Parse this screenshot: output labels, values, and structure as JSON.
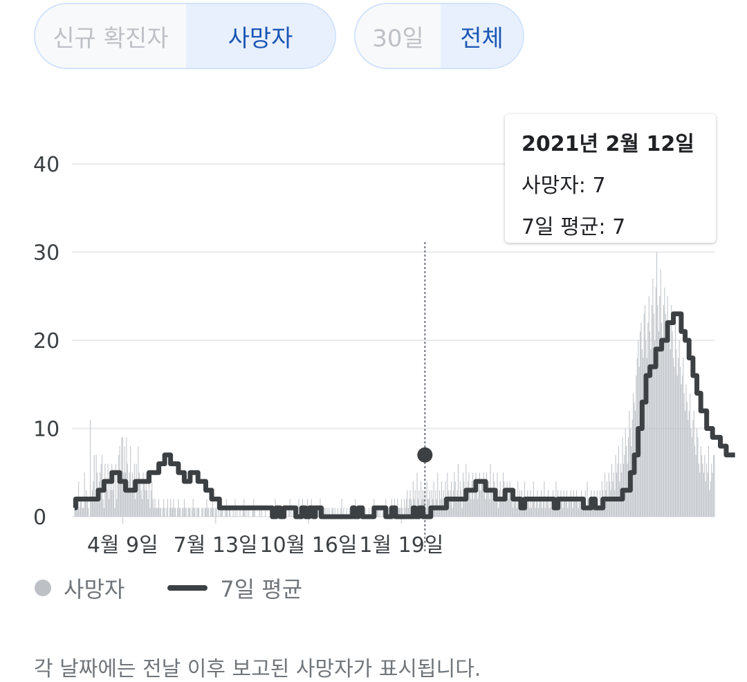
{
  "toggles": {
    "metric": [
      "신규 확진자",
      "사망자"
    ],
    "metric_active": 1,
    "range": [
      "30일",
      "전체"
    ],
    "range_active": 1
  },
  "tooltip": {
    "date": "2021년 2월 12일",
    "deaths": "사망자: 7",
    "avg": "7일 평균: 7"
  },
  "legend": {
    "bars": "사망자",
    "line": "7일 평균"
  },
  "footnote": "각 날짜에는 전날 이후 보고된 사망자가 표시됩니다.",
  "colors": {
    "bar": "#bdc1c6",
    "line": "#3c4043",
    "grid": "#e8eaed",
    "active_toggle_bg": "#e8f0fe",
    "active_toggle_text": "#1a56b4"
  },
  "chart_data": {
    "type": "bar",
    "x_range": [
      "2020-02-20",
      "2021-02-12"
    ],
    "ylim": [
      0,
      40
    ],
    "yticks": [
      0,
      10,
      20,
      30,
      40
    ],
    "ytick_labels": [
      "0",
      "10",
      "20",
      "30",
      "40"
    ],
    "xticks": [
      {
        "date": "2020-04-09",
        "label": "4월 9일"
      },
      {
        "date": "2020-07-13",
        "label": "7월 13일"
      },
      {
        "date": "2020-10-16",
        "label": "10월 16일"
      },
      {
        "date": "2021-01-19",
        "label": "1월 19일"
      }
    ],
    "grid": true,
    "legend_position": "bottom-left",
    "highlight": {
      "date": "2021-02-12",
      "deaths": 7,
      "avg": 7
    },
    "series": [
      {
        "name": "사망자",
        "kind": "bar",
        "values": [
          1,
          1,
          2,
          2,
          4,
          1,
          2,
          2,
          1,
          1,
          5,
          2,
          3,
          2,
          1,
          0,
          11,
          2,
          3,
          4,
          7,
          2,
          7,
          5,
          3,
          4,
          5,
          6,
          7,
          2,
          1,
          6,
          4,
          3,
          6,
          2,
          5,
          3,
          6,
          3,
          4,
          1,
          6,
          2,
          5,
          7,
          8,
          4,
          9,
          9,
          5,
          8,
          5,
          9,
          6,
          4,
          5,
          8,
          3,
          5,
          4,
          6,
          2,
          6,
          4,
          8,
          5,
          4,
          3,
          2,
          5,
          4,
          3,
          5,
          3,
          2,
          4,
          1,
          3,
          4,
          2,
          1,
          2,
          1,
          1,
          1,
          2,
          1,
          1,
          0,
          1,
          2,
          1,
          0,
          1,
          2,
          0,
          1,
          2,
          1,
          1,
          2,
          1,
          1,
          0,
          1,
          2,
          1,
          1,
          0,
          1,
          1,
          2,
          1,
          1,
          0,
          1,
          1,
          1,
          0,
          1,
          2,
          1,
          1,
          0,
          1,
          1,
          1,
          0,
          0,
          1,
          1,
          0,
          1,
          1,
          2,
          1,
          1,
          0,
          1,
          1,
          2,
          1,
          0,
          1,
          1,
          0,
          1,
          0,
          2,
          1,
          1,
          0,
          0,
          1,
          2,
          1,
          0,
          1,
          1,
          0,
          0,
          1,
          0,
          2,
          0,
          1,
          0,
          0,
          1,
          0,
          0,
          1,
          2,
          1,
          0,
          1,
          0,
          1,
          0,
          0,
          0,
          1,
          2,
          1,
          0,
          0,
          0,
          0,
          1,
          0,
          1,
          0,
          0,
          0,
          1,
          0,
          0,
          0,
          0,
          1,
          0,
          0,
          0,
          1,
          2,
          0,
          1,
          0,
          0,
          0,
          0,
          1,
          0,
          0,
          1,
          1,
          0,
          0,
          1,
          2,
          0,
          1,
          0,
          1,
          0,
          0,
          1,
          1,
          2,
          1,
          0,
          1,
          2,
          1,
          0,
          1,
          1,
          2,
          1,
          0,
          1,
          2,
          1,
          0,
          1,
          1,
          1,
          0,
          1,
          0,
          2,
          1,
          0,
          1,
          1,
          1,
          0,
          1,
          0,
          1,
          0,
          0,
          1,
          1,
          0,
          1,
          0,
          0,
          1,
          0,
          0,
          1,
          2,
          0,
          1,
          0,
          0,
          1,
          0,
          0,
          1,
          0,
          1,
          0,
          0,
          0,
          2,
          0,
          1,
          0,
          1,
          0,
          0,
          0,
          1,
          0,
          1,
          0,
          0,
          0,
          1,
          0,
          0,
          1,
          0,
          2,
          0,
          0,
          1,
          1,
          0,
          1,
          0,
          0,
          1,
          1,
          0,
          2,
          1,
          0,
          1,
          1,
          0,
          2,
          1,
          1,
          2,
          1,
          0,
          2,
          1,
          1,
          1,
          2,
          1,
          0,
          2,
          1,
          2,
          3,
          1,
          2,
          3,
          2,
          1,
          4,
          2,
          3,
          1,
          5,
          2,
          3,
          1,
          4,
          2,
          3,
          2,
          3,
          1,
          4,
          2,
          2,
          3,
          1,
          3,
          2,
          4,
          1,
          3,
          2,
          5,
          1,
          3,
          2,
          4,
          2,
          3,
          1,
          4,
          2,
          5,
          3,
          2,
          3,
          4,
          1,
          3,
          5,
          4,
          2,
          3,
          6,
          2,
          4,
          3,
          1,
          5,
          4,
          3,
          6,
          2,
          4,
          5,
          3,
          2,
          4,
          5,
          2,
          3,
          5,
          4,
          2,
          3,
          5,
          3,
          4,
          4,
          5,
          3,
          2,
          5,
          4,
          4,
          2,
          6,
          3,
          2,
          5,
          4,
          3,
          2,
          5,
          1,
          3,
          4,
          2,
          3,
          5,
          4,
          2,
          3,
          4,
          2,
          3,
          4,
          2,
          3,
          1,
          2,
          3,
          2,
          1,
          4,
          2,
          3,
          2,
          3,
          1,
          2,
          4,
          2,
          1,
          3,
          2,
          1,
          3,
          1,
          2,
          4,
          2,
          1,
          2,
          3,
          1,
          2,
          2,
          3,
          1,
          2,
          4,
          1,
          2,
          2,
          3,
          1,
          2,
          1,
          2,
          3,
          2,
          1,
          4,
          2,
          3,
          1,
          2,
          3,
          2,
          1,
          3,
          2,
          2,
          3,
          1,
          2,
          2,
          3,
          2,
          1,
          3,
          2,
          2,
          3,
          2,
          1,
          2,
          2,
          3,
          1,
          2,
          2,
          3,
          1,
          4,
          2,
          2,
          1,
          3,
          2,
          2,
          3,
          1,
          2,
          3,
          2,
          1,
          3,
          2,
          4,
          3,
          2,
          5,
          3,
          4,
          2,
          5,
          4,
          3,
          6,
          4,
          5,
          3,
          7,
          5,
          6,
          8,
          4,
          6,
          5,
          9,
          6,
          7,
          10,
          8,
          6,
          9,
          12,
          10,
          8,
          11,
          14,
          13,
          12,
          16,
          18,
          20,
          17,
          21,
          22,
          19,
          18,
          23,
          24,
          20,
          18,
          22,
          25,
          21,
          19,
          24,
          27,
          23,
          20,
          26,
          30,
          24,
          21,
          25,
          28,
          22,
          20,
          24,
          26,
          23,
          21,
          25,
          22,
          20,
          19,
          24,
          21,
          18,
          17,
          22,
          19,
          16,
          18,
          20,
          17,
          15,
          16,
          18,
          14,
          12,
          15,
          13,
          11,
          12,
          14,
          10,
          9,
          11,
          12,
          8,
          7,
          10,
          9,
          6,
          5,
          8,
          7,
          6,
          5,
          7,
          4,
          6,
          5,
          8,
          3,
          4,
          6,
          5,
          7,
          7
        ]
      },
      {
        "name": "7일 평균",
        "kind": "line",
        "points": [
          [
            0,
            1
          ],
          [
            1,
            2
          ],
          [
            24,
            3
          ],
          [
            30,
            4
          ],
          [
            38,
            5
          ],
          [
            46,
            4
          ],
          [
            52,
            3
          ],
          [
            62,
            4
          ],
          [
            76,
            5
          ],
          [
            86,
            6
          ],
          [
            92,
            7
          ],
          [
            98,
            6
          ],
          [
            106,
            5
          ],
          [
            112,
            4
          ],
          [
            118,
            5
          ],
          [
            126,
            4
          ],
          [
            134,
            3
          ],
          [
            140,
            2
          ],
          [
            148,
            1
          ],
          [
            200,
            1
          ],
          [
            202,
            0
          ],
          [
            206,
            1
          ],
          [
            210,
            0
          ],
          [
            214,
            1
          ],
          [
            226,
            0
          ],
          [
            232,
            1
          ],
          [
            236,
            0
          ],
          [
            240,
            1
          ],
          [
            244,
            0
          ],
          [
            246,
            1
          ],
          [
            252,
            0
          ],
          [
            284,
            1
          ],
          [
            286,
            0
          ],
          [
            290,
            1
          ],
          [
            294,
            0
          ],
          [
            306,
            1
          ],
          [
            318,
            0
          ],
          [
            324,
            1
          ],
          [
            328,
            0
          ],
          [
            346,
            1
          ],
          [
            348,
            0
          ],
          [
            352,
            1
          ],
          [
            356,
            0
          ],
          [
            364,
            1
          ],
          [
            380,
            2
          ],
          [
            400,
            3
          ],
          [
            410,
            4
          ],
          [
            420,
            3
          ],
          [
            430,
            2
          ],
          [
            440,
            3
          ],
          [
            448,
            2
          ],
          [
            456,
            1
          ],
          [
            460,
            2
          ],
          [
            490,
            1
          ],
          [
            494,
            2
          ],
          [
            520,
            1
          ],
          [
            528,
            2
          ],
          [
            532,
            1
          ],
          [
            540,
            2
          ],
          [
            560,
            3
          ],
          [
            568,
            5
          ],
          [
            572,
            7
          ],
          [
            576,
            10
          ],
          [
            580,
            13
          ],
          [
            584,
            16
          ],
          [
            588,
            17
          ],
          [
            594,
            19
          ],
          [
            600,
            20
          ],
          [
            606,
            22
          ],
          [
            612,
            23
          ],
          [
            616,
            23
          ],
          [
            620,
            21
          ],
          [
            624,
            20
          ],
          [
            628,
            18
          ],
          [
            632,
            16
          ],
          [
            636,
            14
          ],
          [
            640,
            12
          ],
          [
            646,
            10
          ],
          [
            652,
            9
          ],
          [
            660,
            8
          ],
          [
            666,
            7
          ],
          [
            672,
            7
          ],
          [
            675,
            7
          ]
        ]
      }
    ]
  }
}
